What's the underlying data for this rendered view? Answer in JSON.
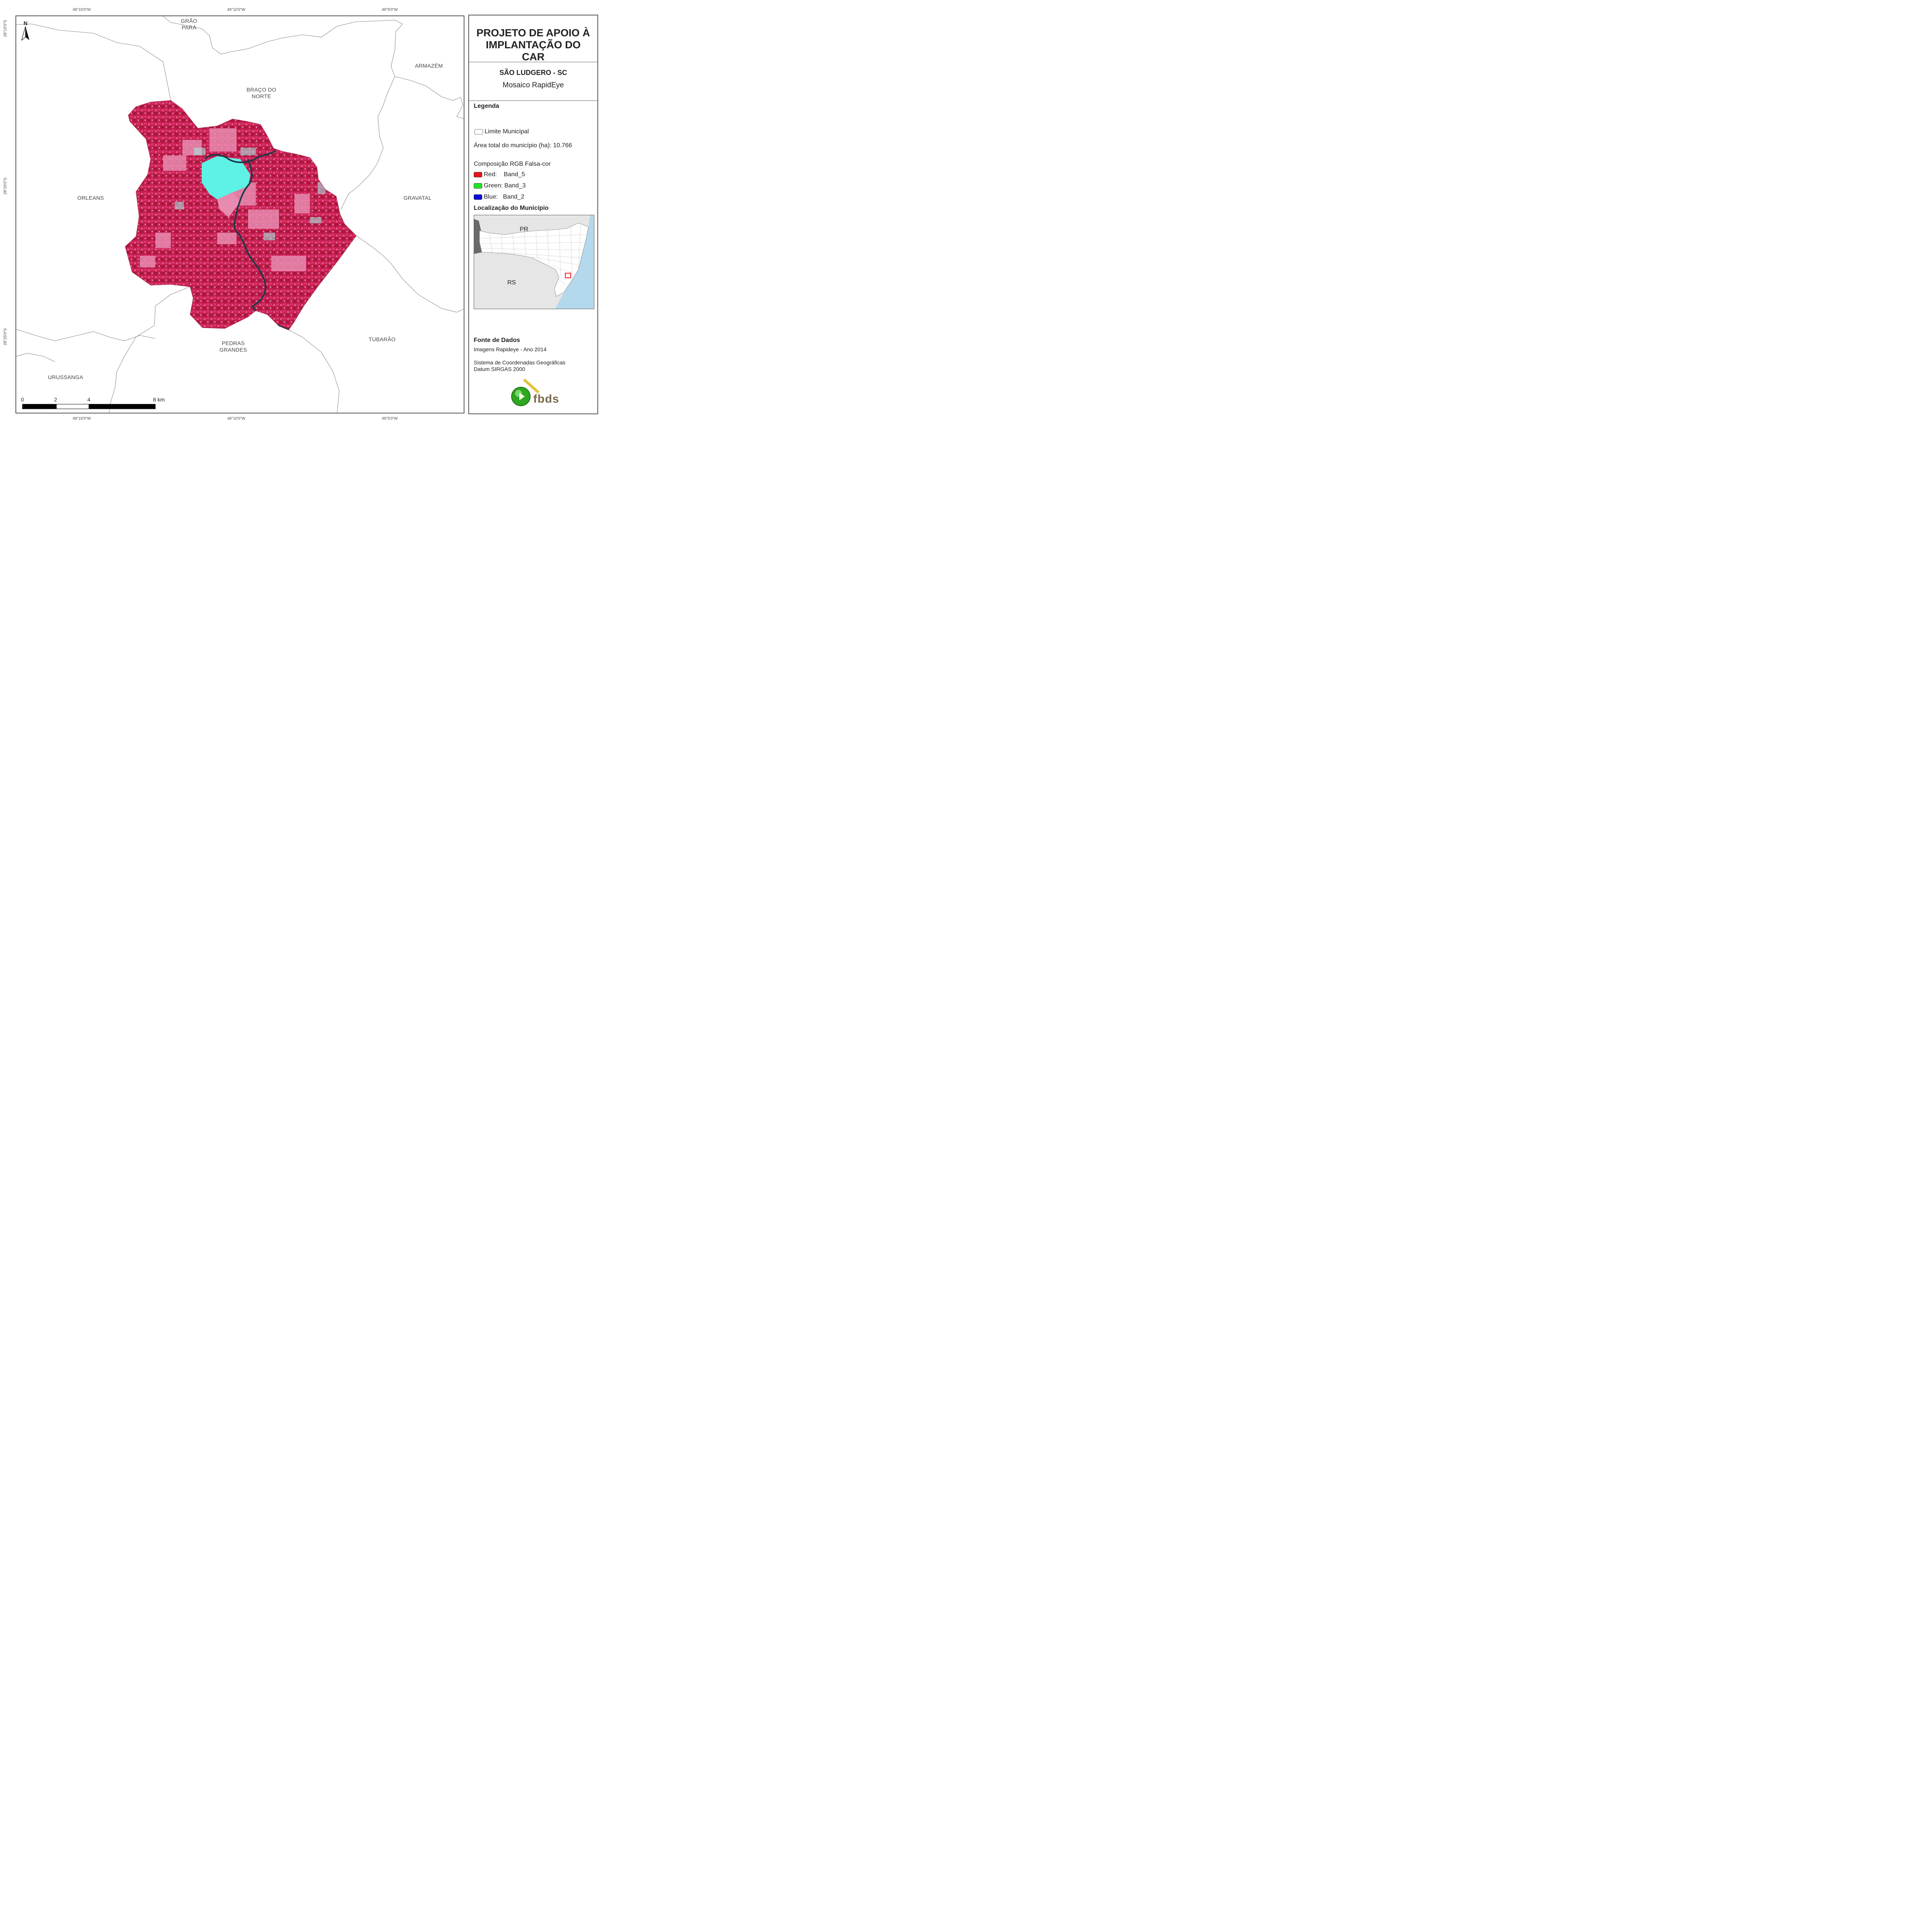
{
  "coordinates": {
    "top": [
      "49°15'0\"W",
      "49°10'0\"W",
      "49°5'0\"W"
    ],
    "bottom": [
      "49°15'0\"W",
      "49°10'0\"W",
      "49°5'0\"W"
    ],
    "left": [
      "28°15'0\"S",
      "28°20'0\"S",
      "28°25'0\"S"
    ]
  },
  "north_arrow": "N",
  "places": {
    "grao_para": "GRÃO\nPARÁ",
    "armazem": "ARMAZÉM",
    "braco_do_norte": "BRAÇO DO\nNORTE",
    "orleans": "ORLEANS",
    "gravatal": "GRAVATAL",
    "tubarao": "TUBARÃO",
    "pedras_grandes": "PEDRAS\nGRANDES",
    "urussanga": "URUSSANGA"
  },
  "scale_bar": {
    "labels": [
      "0",
      "2",
      "4",
      "8 km"
    ]
  },
  "panel": {
    "title": "PROJETO DE APOIO À IMPLANTAÇÃO DO CAR",
    "municipality": "SÃO LUDGERO - SC",
    "subtitle": "Mosaico RapidEye",
    "legend_title": "Legenda",
    "limit_label": "Limite Municipal",
    "area_label": "Área total do município (ha): 10.766",
    "rgb_title": "Composição RGB Falsa-cor",
    "bands": [
      {
        "label": "Red:    Band_5",
        "color": "#e8141c"
      },
      {
        "label": "Green: Band_3",
        "color": "#1ee61e"
      },
      {
        "label": "Blue:   Band_2",
        "color": "#0a0adc"
      }
    ],
    "location_title": "Localização do Município",
    "inset_labels": {
      "pr": "PR",
      "rs": "RS"
    },
    "source_title": "Fonte de Dados",
    "source_lines": [
      "Imagens Rapideye - Ano 2014",
      "Sistema de Coordenadas Geográficas",
      "Datum SIRGAS 2000"
    ],
    "logo_text": "fbds"
  },
  "colors": {
    "vegetation": "#c81e4e",
    "urban": "#5ef2e6",
    "river": "#1b3a4a",
    "ocean": "#b5d9ec",
    "boundary": "#888888"
  }
}
